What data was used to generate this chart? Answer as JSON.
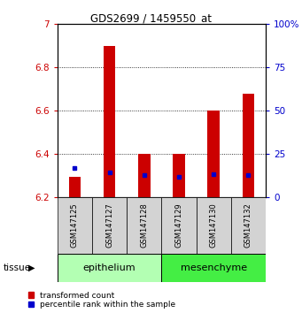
{
  "title": "GDS2699 / 1459550_at",
  "samples": [
    "GSM147125",
    "GSM147127",
    "GSM147128",
    "GSM147129",
    "GSM147130",
    "GSM147132"
  ],
  "red_values": [
    6.295,
    6.895,
    6.4,
    6.4,
    6.6,
    6.675
  ],
  "blue_values": [
    17.0,
    14.5,
    12.5,
    11.5,
    13.0,
    12.5
  ],
  "ymin": 6.2,
  "ymax": 7.0,
  "y2min": 0,
  "y2max": 100,
  "yticks": [
    6.2,
    6.4,
    6.6,
    6.8,
    7.0
  ],
  "y2ticks": [
    0,
    25,
    50,
    75,
    100
  ],
  "ytick_labels": [
    "6.2",
    "6.4",
    "6.6",
    "6.8",
    "7"
  ],
  "y2tick_labels": [
    "0",
    "25",
    "50",
    "75",
    "100%"
  ],
  "groups": [
    {
      "label": "epithelium",
      "indices": [
        0,
        1,
        2
      ],
      "color": "#b3ffb3"
    },
    {
      "label": "mesenchyme",
      "indices": [
        3,
        4,
        5
      ],
      "color": "#44ee44"
    }
  ],
  "tissue_label": "tissue",
  "bar_baseline": 6.2,
  "red_color": "#cc0000",
  "blue_color": "#0000cc",
  "bar_width": 0.35,
  "background_color": "#ffffff",
  "tick_area_color": "#d3d3d3",
  "legend_labels": [
    "transformed count",
    "percentile rank within the sample"
  ]
}
